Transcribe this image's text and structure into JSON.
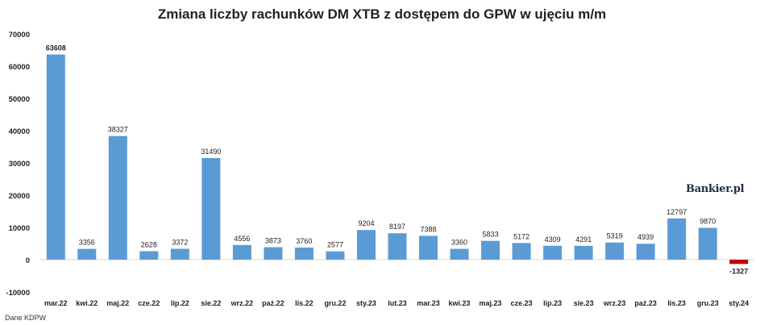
{
  "chart_data": {
    "type": "bar",
    "title": "Zmiana liczby rachunków DM XTB z dostępem do GPW w ujęciu m/m",
    "categories": [
      "mar.22",
      "kwi.22",
      "maj.22",
      "cze.22",
      "lip.22",
      "sie.22",
      "wrz.22",
      "paź.22",
      "lis.22",
      "gru.22",
      "sty.23",
      "lut.23",
      "mar.23",
      "kwi.23",
      "maj.23",
      "cze.23",
      "lip.23",
      "sie.23",
      "wrz.23",
      "paź.23",
      "lis.23",
      "gru.23",
      "sty.24"
    ],
    "values": [
      63608,
      3356,
      38327,
      2628,
      3372,
      31490,
      4556,
      3873,
      3760,
      2577,
      9204,
      8197,
      7388,
      3360,
      5833,
      5172,
      4309,
      4291,
      5319,
      4939,
      12797,
      9870,
      -1327
    ],
    "ylim": [
      -10000,
      70000
    ],
    "yticks": [
      -10000,
      0,
      10000,
      20000,
      30000,
      40000,
      50000,
      60000,
      70000
    ],
    "xlabel": "",
    "ylabel": "",
    "grid": false,
    "colors": {
      "positive": "#5b9bd5",
      "negative": "#c00000"
    }
  },
  "brand": "Bankier.pl",
  "source": "Dane KDPW"
}
